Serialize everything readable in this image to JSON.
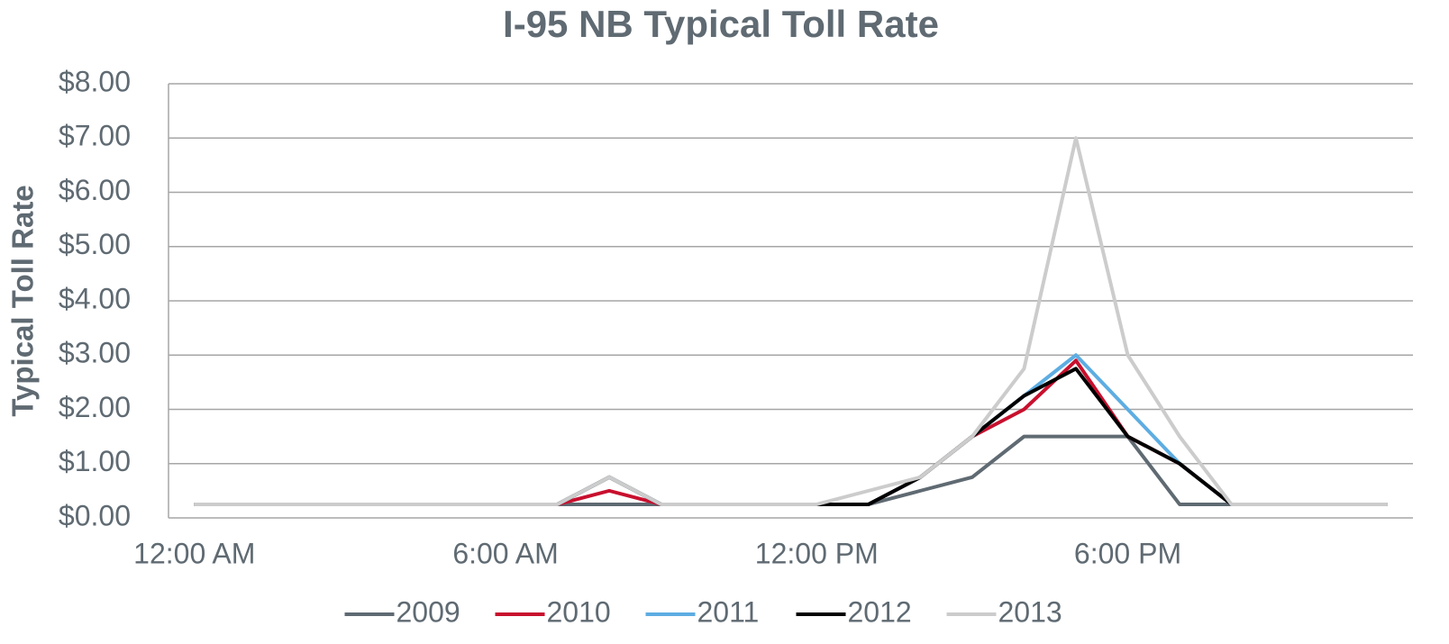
{
  "chart_data": {
    "type": "line",
    "title": "I-95 NB Typical Toll Rate",
    "y_label": "Typical Toll Rate",
    "categories": [
      "12:00 AM",
      null,
      null,
      null,
      null,
      null,
      "6:00 AM",
      null,
      null,
      null,
      null,
      null,
      "12:00 PM",
      null,
      null,
      null,
      null,
      null,
      "6:00 PM",
      null,
      null,
      null,
      null,
      null
    ],
    "series": [
      {
        "name": "2009",
        "color": "#5f6a72",
        "values": [
          0.25,
          0.25,
          0.25,
          0.25,
          0.25,
          0.25,
          0.25,
          0.25,
          0.25,
          0.25,
          0.25,
          0.25,
          0.25,
          0.25,
          0.5,
          0.75,
          1.5,
          1.5,
          1.5,
          0.25,
          0.25,
          0.25,
          0.25,
          0.25
        ]
      },
      {
        "name": "2010",
        "color": "#c8102e",
        "values": [
          0.25,
          0.25,
          0.25,
          0.25,
          0.25,
          0.25,
          0.25,
          0.25,
          0.5,
          0.25,
          0.25,
          0.25,
          0.25,
          0.25,
          0.75,
          1.5,
          2.0,
          2.9,
          1.5,
          1.0,
          0.25,
          0.25,
          0.25,
          0.25
        ]
      },
      {
        "name": "2011",
        "color": "#5dade2",
        "values": [
          0.25,
          0.25,
          0.25,
          0.25,
          0.25,
          0.25,
          0.25,
          0.25,
          0.75,
          0.25,
          0.25,
          0.25,
          0.25,
          0.25,
          0.75,
          1.5,
          2.25,
          3.0,
          2.0,
          1.0,
          0.25,
          0.25,
          0.25,
          0.25
        ]
      },
      {
        "name": "2012",
        "color": "#000000",
        "values": [
          0.25,
          0.25,
          0.25,
          0.25,
          0.25,
          0.25,
          0.25,
          0.25,
          0.75,
          0.25,
          0.25,
          0.25,
          0.25,
          0.25,
          0.75,
          1.5,
          2.25,
          2.75,
          1.5,
          1.0,
          0.25,
          0.25,
          0.25,
          0.25
        ]
      },
      {
        "name": "2013",
        "color": "#cccccc",
        "values": [
          0.25,
          0.25,
          0.25,
          0.25,
          0.25,
          0.25,
          0.25,
          0.25,
          0.75,
          0.25,
          0.25,
          0.25,
          0.25,
          0.5,
          0.75,
          1.5,
          2.75,
          7.0,
          3.0,
          1.5,
          0.25,
          0.25,
          0.25,
          0.25
        ]
      }
    ],
    "ylim": [
      0,
      8
    ],
    "yticks": [
      {
        "value": 0,
        "label": "$0.00"
      },
      {
        "value": 1,
        "label": "$1.00"
      },
      {
        "value": 2,
        "label": "$2.00"
      },
      {
        "value": 3,
        "label": "$3.00"
      },
      {
        "value": 4,
        "label": "$4.00"
      },
      {
        "value": 5,
        "label": "$5.00"
      },
      {
        "value": 6,
        "label": "$6.00"
      },
      {
        "value": 7,
        "label": "$7.00"
      },
      {
        "value": 8,
        "label": "$8.00"
      }
    ],
    "grid": true,
    "legend": "bottom"
  }
}
